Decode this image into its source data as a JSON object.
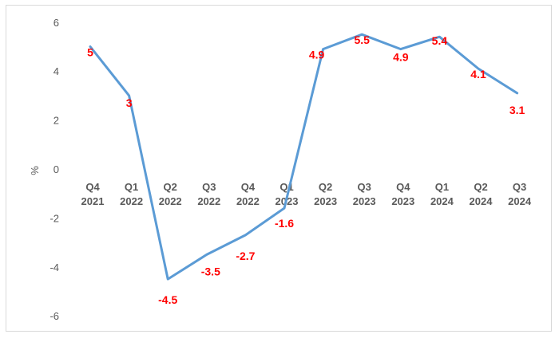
{
  "chart_data": {
    "type": "line",
    "ylabel": "%",
    "ylim": [
      -6,
      6
    ],
    "yticks": [
      -6,
      -4,
      -2,
      0,
      2,
      4,
      6
    ],
    "grid": false,
    "categories": [
      [
        "Q4",
        "2021"
      ],
      [
        "Q1",
        "2022"
      ],
      [
        "Q2",
        "2022"
      ],
      [
        "Q3",
        "2022"
      ],
      [
        "Q4",
        "2022"
      ],
      [
        "Q1",
        "2023"
      ],
      [
        "Q2",
        "2023"
      ],
      [
        "Q3",
        "2023"
      ],
      [
        "Q4",
        "2023"
      ],
      [
        "Q1",
        "2024"
      ],
      [
        "Q2",
        "2024"
      ],
      [
        "Q3",
        "2024"
      ]
    ],
    "series": [
      {
        "values": [
          5,
          3,
          -4.5,
          -3.5,
          -2.7,
          -1.6,
          4.9,
          5.5,
          4.9,
          5.4,
          4.1,
          3.1
        ],
        "data_labels": [
          "5",
          "3",
          "-4.5",
          "-3.5",
          "-2.7",
          "-1.6",
          "4.9",
          "5.5",
          "4.9",
          "5.4",
          "4.1",
          "3.1"
        ]
      }
    ],
    "colors": {
      "line": "#5b9bd5",
      "labels": "#ff0000",
      "text": "#595959"
    }
  }
}
